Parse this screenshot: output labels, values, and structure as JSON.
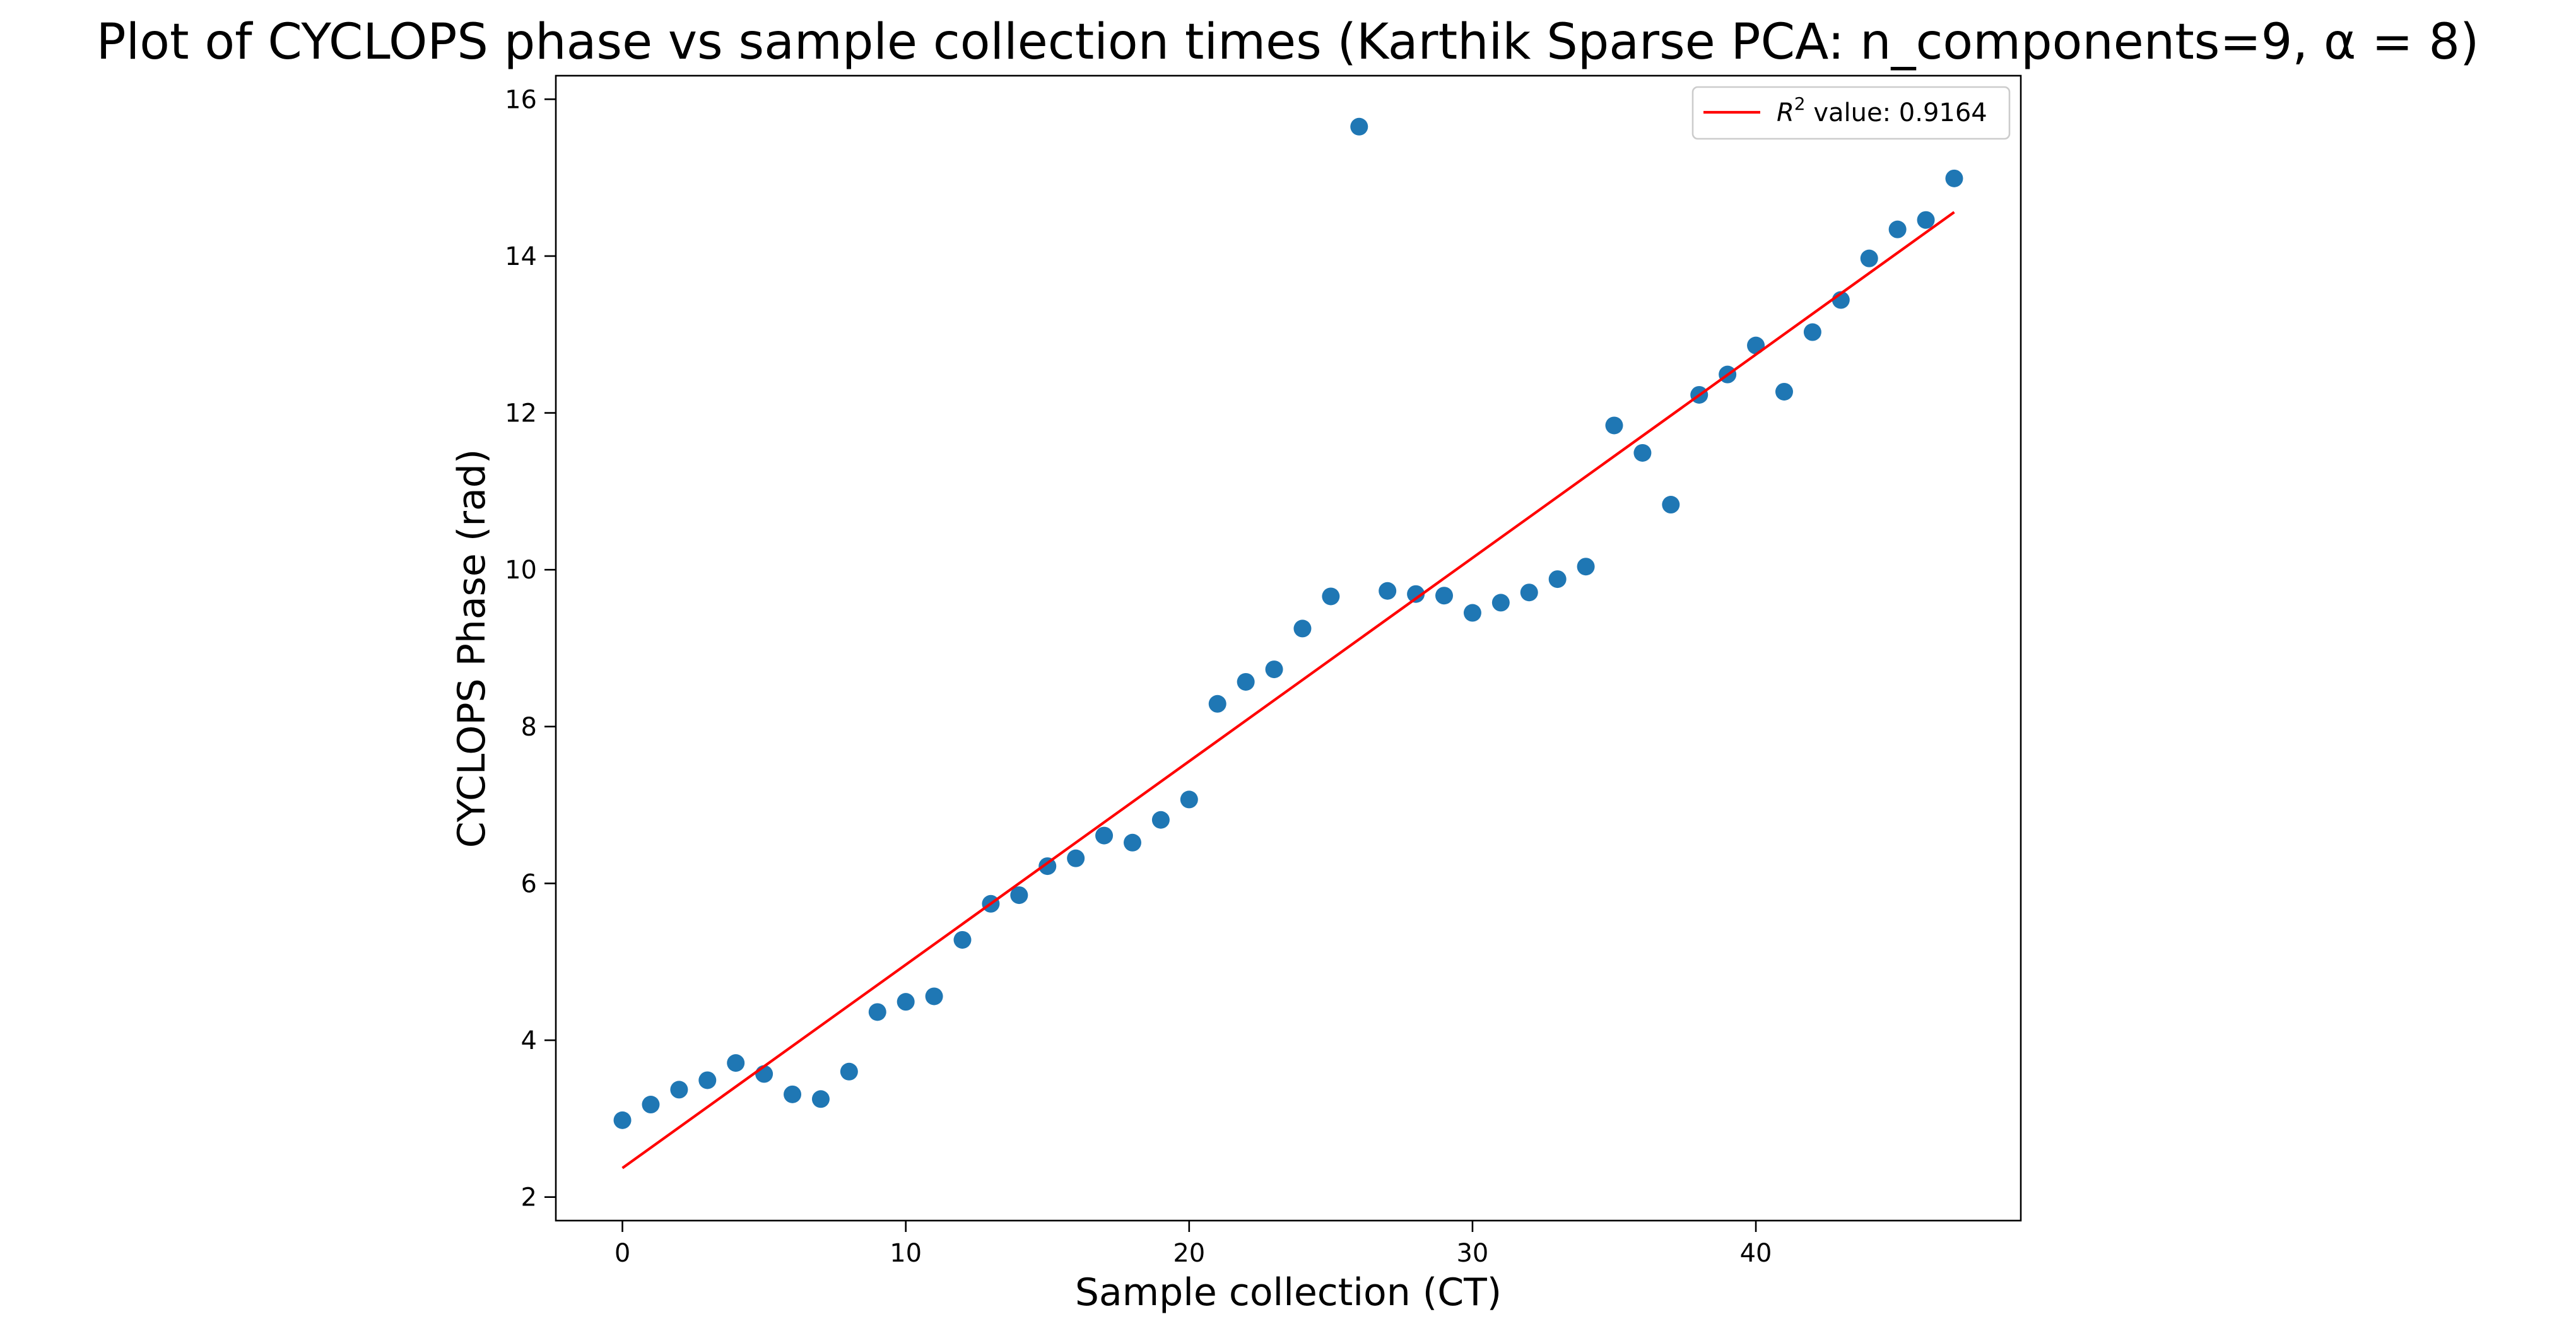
{
  "chart_data": {
    "type": "scatter",
    "title": "Plot of CYCLOPS phase vs sample collection times (Karthik Sparse PCA: n_components=9, α = 8)",
    "xlabel": "Sample collection (CT)",
    "ylabel": "CYCLOPS Phase (rad)",
    "xlim": [
      -2.35,
      49.35
    ],
    "ylim": [
      1.7,
      16.3
    ],
    "xticks": [
      0,
      10,
      20,
      30,
      40
    ],
    "yticks": [
      2,
      4,
      6,
      8,
      10,
      12,
      14,
      16
    ],
    "grid": false,
    "legend_position": "top-right",
    "colors": {
      "points": "#1f77b4",
      "fit_line": "#ff0000",
      "axes": "#000000",
      "legend_border": "#cccccc"
    },
    "series": [
      {
        "kind": "scatter",
        "x": [
          0,
          1,
          2,
          3,
          4,
          5,
          6,
          7,
          8,
          9,
          10,
          11,
          12,
          13,
          14,
          15,
          16,
          17,
          18,
          19,
          20,
          21,
          22,
          23,
          24,
          25,
          26,
          27,
          28,
          29,
          30,
          31,
          32,
          33,
          34,
          35,
          36,
          37,
          38,
          39,
          40,
          41,
          42,
          43,
          44,
          45,
          46,
          47
        ],
        "y": [
          2.98,
          3.18,
          3.37,
          3.49,
          3.71,
          3.57,
          3.31,
          3.25,
          3.6,
          4.36,
          4.49,
          4.56,
          5.28,
          5.74,
          5.85,
          6.22,
          6.32,
          6.61,
          6.52,
          6.81,
          7.07,
          8.29,
          8.57,
          8.73,
          9.25,
          9.66,
          15.65,
          9.73,
          9.69,
          9.67,
          9.45,
          9.58,
          9.71,
          9.88,
          10.04,
          11.84,
          11.49,
          10.83,
          12.23,
          12.49,
          12.86,
          12.27,
          13.03,
          13.44,
          13.97,
          14.34,
          14.46,
          14.99
        ]
      },
      {
        "kind": "line",
        "name": "value: 0.9164",
        "x": [
          0,
          47
        ],
        "y": [
          2.37,
          14.56
        ]
      }
    ],
    "legend": {
      "label_prefix_italic": "R",
      "label_superscript": "2",
      "label_rest": " value: 0.9164"
    }
  }
}
